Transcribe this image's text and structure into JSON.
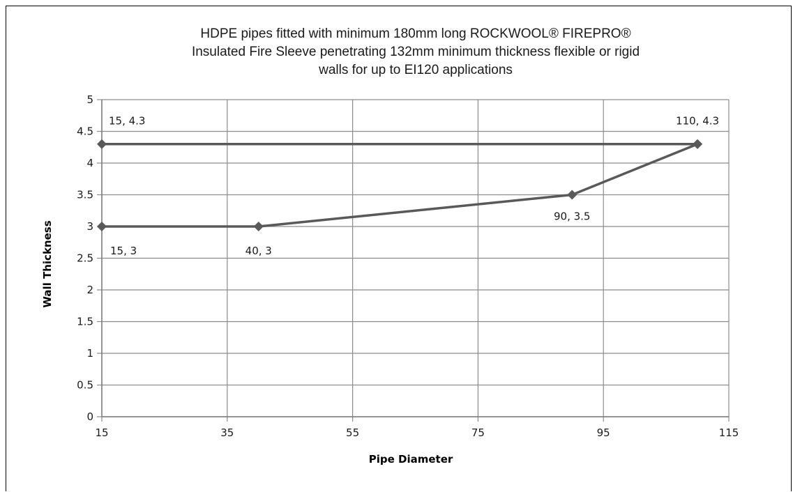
{
  "chart_data": {
    "type": "line",
    "title_lines": [
      "HDPE pipes fitted with  minimum 180mm long ROCKWOOL® FIREPRO®",
      "Insulated Fire Sleeve penetrating 132mm minimum thickness flexible or rigid",
      "walls for up to EI120 applications"
    ],
    "xlabel": "Pipe Diameter",
    "ylabel": "Wall Thickness",
    "xlim": [
      15,
      115
    ],
    "ylim": [
      0,
      5
    ],
    "x_ticks": [
      "15",
      "35",
      "55",
      "75",
      "95",
      "115"
    ],
    "y_ticks": [
      "0",
      "0.5",
      "1",
      "1.5",
      "2",
      "2.5",
      "3",
      "3.5",
      "4",
      "4.5",
      "5"
    ],
    "grid": true,
    "legend": "none",
    "marker": "diamond",
    "line_color": "#595959",
    "grid_color": "#8c8c8c",
    "series": [
      {
        "points": [
          {
            "x": 15,
            "y": 4.3,
            "label": "15, 4.3"
          },
          {
            "x": 110,
            "y": 4.3,
            "label": "110, 4.3"
          }
        ]
      },
      {
        "points": [
          {
            "x": 15,
            "y": 3,
            "label": "15, 3"
          },
          {
            "x": 40,
            "y": 3,
            "label": "40, 3"
          },
          {
            "x": 90,
            "y": 3.5,
            "label": "90, 3.5"
          },
          {
            "x": 110,
            "y": 4.3,
            "label": ""
          }
        ]
      }
    ]
  }
}
